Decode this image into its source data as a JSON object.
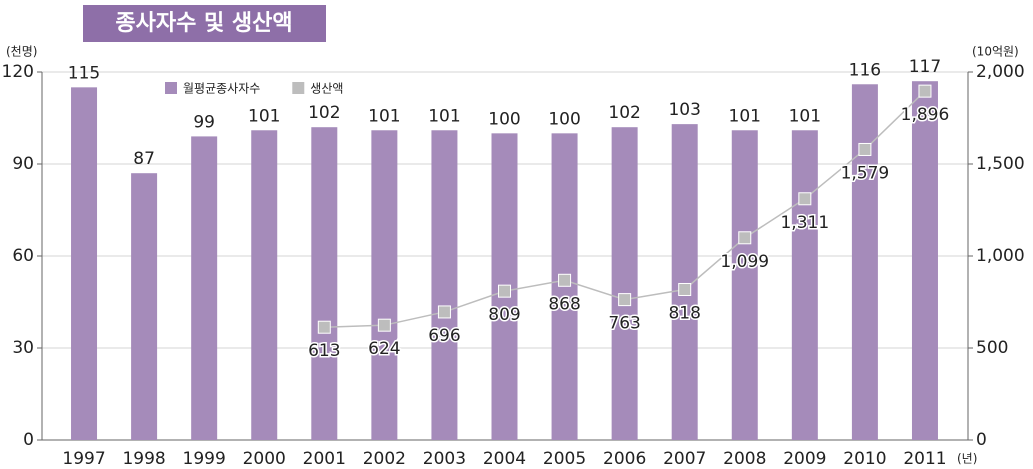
{
  "chart_data": {
    "type": "bar",
    "title": "종사자수 및 생산액",
    "y_unit": "(천명)",
    "y2_unit": "(10억원)",
    "x_unit": "(년)",
    "categories": [
      "1997",
      "1998",
      "1999",
      "2000",
      "2001",
      "2002",
      "2003",
      "2004",
      "2005",
      "2006",
      "2007",
      "2008",
      "2009",
      "2010",
      "2011"
    ],
    "series": [
      {
        "name": "월평균종사자수",
        "color": "#a58bba",
        "values": [
          115,
          87,
          99,
          101,
          102,
          101,
          101,
          100,
          100,
          102,
          103,
          101,
          101,
          116,
          117
        ]
      },
      {
        "name": "생산액",
        "type": "line",
        "axis": "y2",
        "color": "#bdbdbd",
        "values": [
          null,
          null,
          null,
          null,
          613,
          624,
          696,
          809,
          868,
          763,
          818,
          1099,
          1311,
          1579,
          1896
        ],
        "value_labels": [
          null,
          null,
          null,
          null,
          "613",
          "624",
          "696",
          "809",
          "868",
          "763",
          "818",
          "1,099",
          "1,311",
          "1,579",
          "1,896"
        ]
      }
    ],
    "ylim": [
      0,
      120
    ],
    "yticks": [
      0,
      30,
      60,
      90,
      120
    ],
    "y2lim": [
      0,
      2000
    ],
    "y2ticks": [
      0,
      500,
      {
        "value": 1000,
        "label": "1,000"
      },
      {
        "value": 1500,
        "label": "1,500"
      },
      {
        "value": 2000,
        "label": "2,000"
      }
    ],
    "grid": true
  }
}
